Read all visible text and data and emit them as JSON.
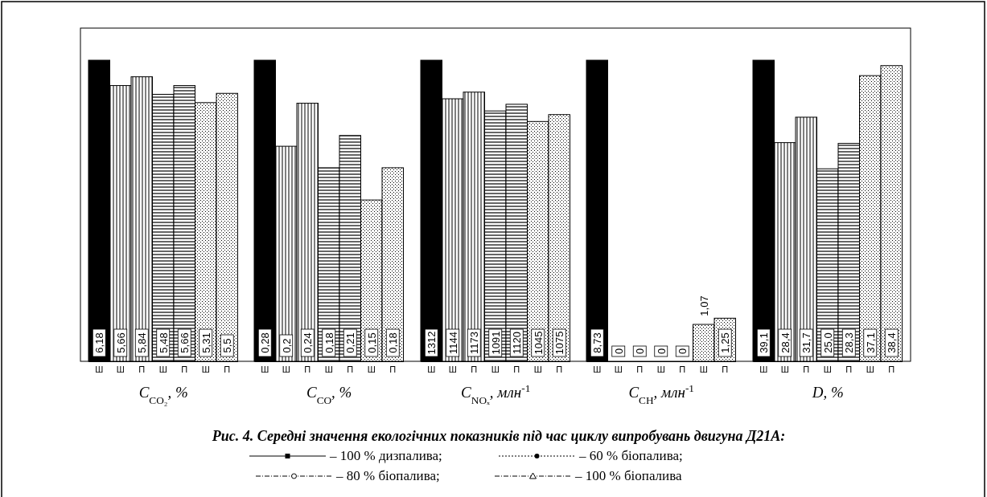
{
  "chart_data": [
    {
      "type": "bar",
      "annotations": [
        "– 100 % дизпалива;",
        "– 60 % біопалива;",
        "– 80 % біопалива;",
        "– 100 % біопалива"
      ],
      "xlabel": "C$_{CO₂}$, %",
      "categories": [
        "Ш",
        "Ш",
        "П",
        "Ш",
        "П",
        "Ш",
        "П"
      ],
      "values": [
        6.18,
        5.66,
        5.84,
        5.48,
        5.66,
        5.31,
        5.5
      ],
      "colors": [
        "#000000",
        "#000000",
        "#000000",
        "#000000",
        "#000000",
        "#000000",
        "#000000"
      ],
      "value_labels": [
        "6,18",
        "5,66",
        "5,84",
        "5,48",
        "5,66",
        "5,31",
        "5,5"
      ]
    },
    {
      "type": "bar",
      "xlabel": "C$_{CO}$, %",
      "categories": [
        "Ш",
        "Ш",
        "П",
        "Ш",
        "П",
        "Ш",
        "П"
      ],
      "values": [
        0.28,
        0.2,
        0.24,
        0.18,
        0.21,
        0.15,
        0.18
      ],
      "colors": [
        "#000000",
        "#000000",
        "#000000",
        "#000000",
        "#000000",
        "#000000",
        "#000000"
      ],
      "value_labels": [
        "0,28",
        "0,2",
        "0,24",
        "0,18",
        "0,21",
        "0,15",
        "0,18"
      ]
    },
    {
      "type": "bar",
      "title": "Рис. 4. Середні значення екологічних показників під час циклу випробувань двигуна Д21А:",
      "xlabel": "C$_{NOₓ}$, млн$^{-1}$",
      "categories": [
        "Ш",
        "Ш",
        "П",
        "Ш",
        "П",
        "Ш",
        "П"
      ],
      "values": [
        1312,
        1144,
        1173,
        1091,
        1120,
        1045,
        1075
      ],
      "colors": [
        "#000000",
        "#000000",
        "#000000",
        "#000000",
        "#000000",
        "#000000",
        "#000000"
      ],
      "value_labels": [
        "1312",
        "1144",
        "1173",
        "1091",
        "1120",
        "1045",
        "1075"
      ]
    },
    {
      "type": "bar",
      "xlabel": "C$_{CH}$, млн$^{-1}$",
      "categories": [
        "Ш",
        "Ш",
        "П",
        "Ш",
        "П",
        "Ш",
        "П"
      ],
      "values": [
        8.73,
        0,
        0,
        0,
        0,
        1.07,
        1.25
      ],
      "colors": [
        "#000000",
        "#000000",
        "#000000",
        "#000000",
        "#000000",
        "#000000",
        "#000000"
      ],
      "value_labels": [
        "8,73",
        "0",
        "0",
        "0",
        "0",
        "1,07",
        "1,25"
      ]
    },
    {
      "type": "bar",
      "xlabel": "D, %",
      "categories": [
        "Ш",
        "Ш",
        "П",
        "Ш",
        "П",
        "Ш",
        "П"
      ],
      "values": [
        39.1,
        28.4,
        31.7,
        25.0,
        28.3,
        37.1,
        38.4
      ],
      "colors": [
        "#000000",
        "#000000",
        "#000000",
        "#000000",
        "#000000",
        "#000000",
        "#000000"
      ],
      "value_labels": [
        "39,1",
        "28,4",
        "31,7",
        "25,0",
        "28,3",
        "37,1",
        "38,4"
      ]
    }
  ]
}
